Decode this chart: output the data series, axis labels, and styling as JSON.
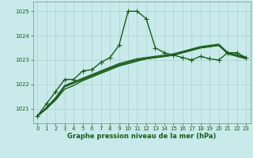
{
  "background_color": "#c8eaea",
  "grid_color": "#b0d0d0",
  "line_color_main": "#1a5c1a",
  "x_ticks": [
    0,
    1,
    2,
    3,
    4,
    5,
    6,
    7,
    8,
    9,
    10,
    11,
    12,
    13,
    14,
    15,
    16,
    17,
    18,
    19,
    20,
    21,
    22,
    23
  ],
  "y_ticks": [
    1021,
    1022,
    1023,
    1024,
    1025
  ],
  "ylim": [
    1020.4,
    1025.4
  ],
  "xlim": [
    -0.5,
    23.5
  ],
  "xlabel": "Graphe pression niveau de la mer (hPa)",
  "series": [
    {
      "x": [
        0,
        1,
        2,
        3,
        4,
        5,
        6,
        7,
        8,
        9,
        10,
        11,
        12,
        13,
        14,
        15,
        16,
        17,
        18,
        19,
        20,
        21,
        22,
        23
      ],
      "y": [
        1020.7,
        1021.2,
        1021.7,
        1022.2,
        1022.2,
        1022.55,
        1022.6,
        1022.9,
        1023.1,
        1023.6,
        1025.0,
        1025.0,
        1024.7,
        1023.5,
        1023.3,
        1023.2,
        1023.1,
        1023.0,
        1023.15,
        1023.05,
        1023.0,
        1023.3,
        1023.3,
        1023.1
      ],
      "marker": "+",
      "markersize": 4,
      "linewidth": 1.0
    },
    {
      "x": [
        0,
        1,
        2,
        3,
        4,
        5,
        6,
        7,
        8,
        9,
        10,
        11,
        12,
        13,
        14,
        15,
        16,
        17,
        18,
        19,
        20,
        21,
        22,
        23
      ],
      "y": [
        1020.7,
        1021.0,
        1021.4,
        1021.9,
        1022.05,
        1022.2,
        1022.35,
        1022.5,
        1022.65,
        1022.8,
        1022.9,
        1023.0,
        1023.05,
        1023.1,
        1023.15,
        1023.2,
        1023.3,
        1023.4,
        1023.5,
        1023.55,
        1023.6,
        1023.3,
        1023.2,
        1023.1
      ],
      "marker": null,
      "linewidth": 1.2
    },
    {
      "x": [
        0,
        1,
        2,
        3,
        4,
        5,
        6,
        7,
        8,
        9,
        10,
        11,
        12,
        13,
        14,
        15,
        16,
        17,
        18,
        19,
        20,
        21,
        22,
        23
      ],
      "y": [
        1020.7,
        1021.0,
        1021.35,
        1021.8,
        1021.95,
        1022.15,
        1022.3,
        1022.45,
        1022.6,
        1022.75,
        1022.85,
        1022.95,
        1023.05,
        1023.1,
        1023.15,
        1023.2,
        1023.3,
        1023.4,
        1023.5,
        1023.55,
        1023.6,
        1023.25,
        1023.15,
        1023.05
      ],
      "marker": null,
      "linewidth": 1.0
    },
    {
      "x": [
        0,
        1,
        2,
        3,
        4,
        5,
        6,
        7,
        8,
        9,
        10,
        11,
        12,
        13,
        14,
        15,
        16,
        17,
        18,
        19,
        20,
        21,
        22,
        23
      ],
      "y": [
        1020.7,
        1021.05,
        1021.45,
        1021.95,
        1022.1,
        1022.25,
        1022.4,
        1022.55,
        1022.7,
        1022.85,
        1022.95,
        1023.05,
        1023.1,
        1023.15,
        1023.2,
        1023.25,
        1023.35,
        1023.45,
        1023.55,
        1023.6,
        1023.65,
        1023.3,
        1023.2,
        1023.1
      ],
      "marker": null,
      "linewidth": 1.0
    }
  ]
}
